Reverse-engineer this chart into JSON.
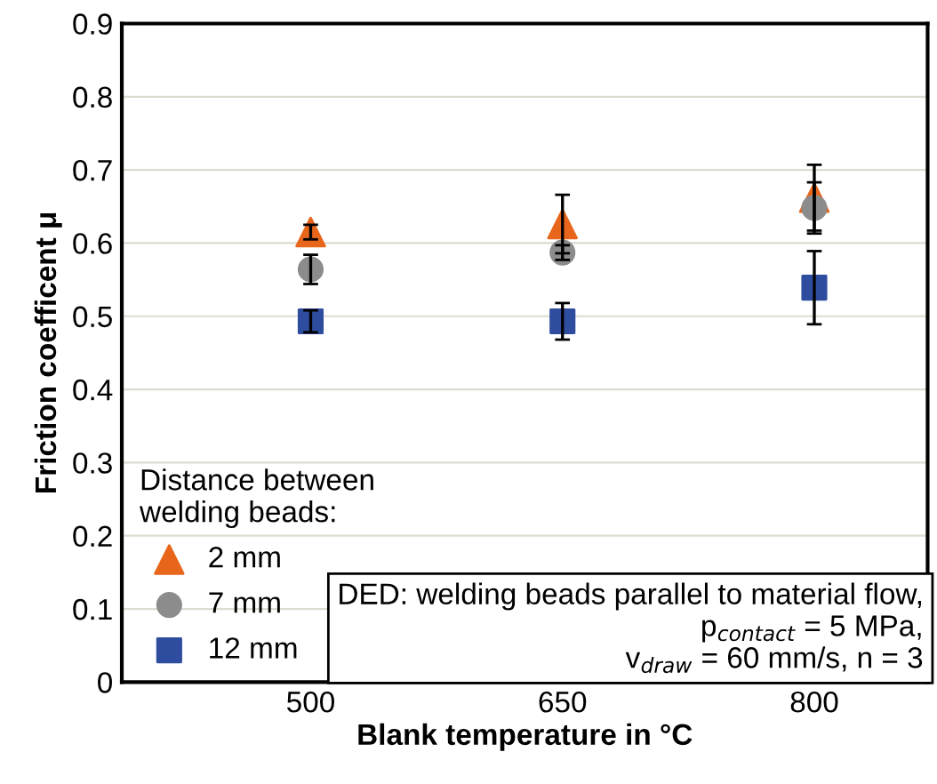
{
  "chart_data": {
    "type": "scatter",
    "xlabel": "Blank temperature in °C",
    "ylabel": "Friction coefficent μ",
    "categories": [
      "500",
      "650",
      "800"
    ],
    "series": [
      {
        "name": "2 mm",
        "color": "#e8661c",
        "marker": "triangle",
        "values": [
          0.615,
          0.626,
          0.662
        ],
        "errors": [
          0.01,
          0.04,
          0.045
        ]
      },
      {
        "name": "7 mm",
        "color": "#8c8c8c",
        "marker": "circle",
        "values": [
          0.564,
          0.587,
          0.648
        ],
        "errors": [
          0.02,
          0.01,
          0.035
        ]
      },
      {
        "name": "12 mm",
        "color": "#2f4d9e",
        "marker": "square",
        "values": [
          0.493,
          0.493,
          0.539
        ],
        "errors": [
          0.015,
          0.025,
          0.05
        ]
      }
    ],
    "ylim": [
      0,
      0.9
    ],
    "yticks": [
      0,
      0.1,
      0.2,
      0.3,
      0.4,
      0.5,
      0.6,
      0.7,
      0.8,
      0.9
    ],
    "grid": "y",
    "legend": "bottom left",
    "legend_title": "Distance between\nwelding beads:",
    "annotations": [
      "DED: welding beads parallel to material flow,\np$_{contact}$ = 5 MPa,\nv$_{draw}$ = 60 mm/s, n = 3"
    ]
  }
}
